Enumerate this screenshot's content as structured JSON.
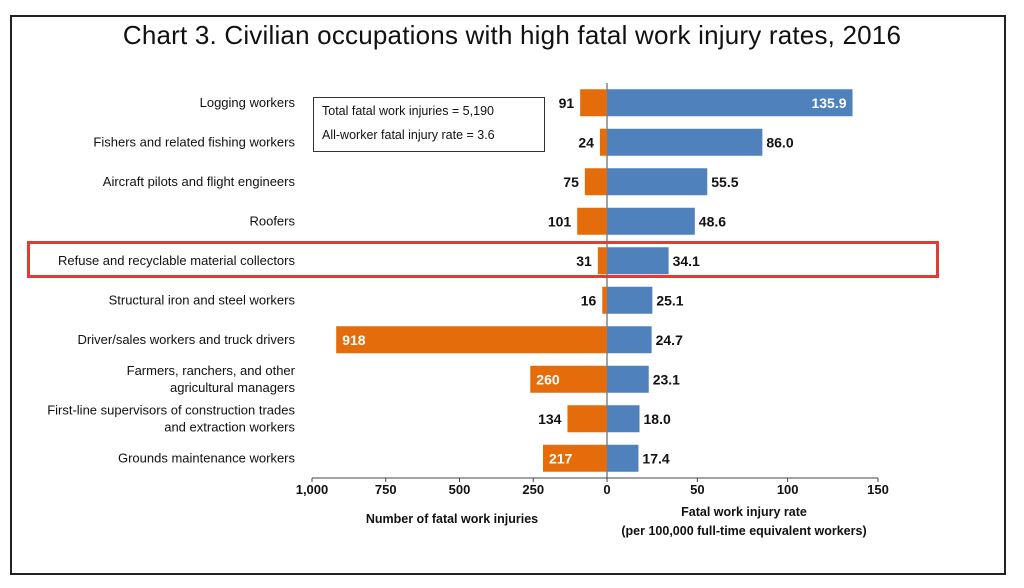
{
  "title": "Chart 3. Civilian occupations with high fatal work injury rates, 2016",
  "stats_box": {
    "total": "Total fatal work injuries = 5,190",
    "rate": "All-worker fatal injury rate = 3.6"
  },
  "chart_data": {
    "type": "bar",
    "title": "Chart 3. Civilian occupations with high fatal work injury rates, 2016",
    "categories": [
      [
        "Logging workers"
      ],
      [
        "Fishers and related fishing workers"
      ],
      [
        "Aircraft pilots and flight engineers"
      ],
      [
        "Roofers"
      ],
      [
        "Refuse and recyclable material collectors"
      ],
      [
        "Structural iron and steel workers"
      ],
      [
        "Driver/sales workers and truck drivers"
      ],
      [
        "Farmers, ranchers, and other",
        "agricultural managers"
      ],
      [
        "First-line supervisors of construction trades",
        "and extraction workers"
      ],
      [
        "Grounds maintenance workers"
      ]
    ],
    "series": [
      {
        "name": "Number of fatal work injuries",
        "color": "#e46c0a",
        "values": [
          91,
          24,
          75,
          101,
          31,
          16,
          918,
          260,
          134,
          217
        ],
        "labels": [
          "91",
          "24",
          "75",
          "101",
          "31",
          "16",
          "918",
          "260",
          "134",
          "217"
        ],
        "ticks": [
          "1,000",
          "750",
          "500",
          "250",
          "0"
        ],
        "tick_values": [
          1000,
          750,
          500,
          250,
          0
        ],
        "xlabel": "Number of fatal work injuries",
        "xlim": [
          0,
          1000
        ]
      },
      {
        "name": "Fatal work injury rate",
        "color": "#4f81bd",
        "values": [
          135.9,
          86.0,
          55.5,
          48.6,
          34.1,
          25.1,
          24.7,
          23.1,
          18.0,
          17.4
        ],
        "labels": [
          "135.9",
          "86.0",
          "55.5",
          "48.6",
          "34.1",
          "25.1",
          "24.7",
          "23.1",
          "18.0",
          "17.4"
        ],
        "ticks": [
          "50",
          "100",
          "150"
        ],
        "tick_values": [
          50,
          100,
          150
        ],
        "xlabel": [
          "Fatal work injury rate",
          "(per 100,000 full-time equivalent workers)"
        ],
        "xlim": [
          0,
          150
        ]
      }
    ],
    "highlighted_category": "Refuse and recyclable material collectors",
    "highlight_color": "#e53935"
  }
}
